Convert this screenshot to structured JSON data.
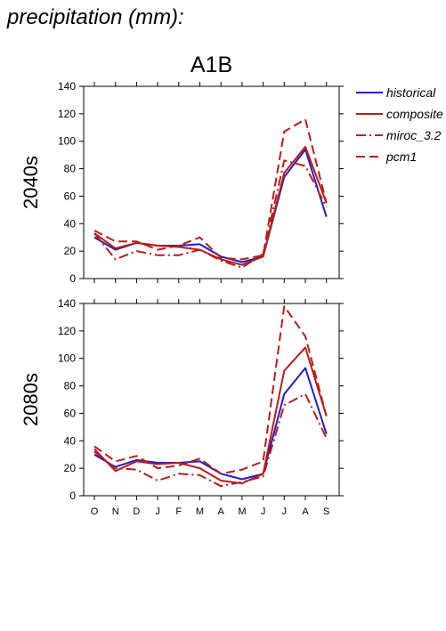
{
  "page_title": "precipitation (mm):",
  "scenario": "A1B",
  "colors": {
    "historical": "#1f1fbf",
    "models": "#b81c1c",
    "axis": "#000000"
  },
  "chart_data": [
    {
      "type": "line",
      "title": "A1B",
      "ylabel": "2040s",
      "xlabel": "",
      "categories": [
        "O",
        "N",
        "D",
        "J",
        "F",
        "M",
        "A",
        "M",
        "J",
        "J",
        "A",
        "S"
      ],
      "ylim": [
        0,
        140
      ],
      "yticks": [
        0,
        20,
        40,
        60,
        80,
        100,
        120,
        140
      ],
      "grid": false,
      "legend": "right",
      "series": [
        {
          "name": "historical",
          "style": "solid",
          "color": "#1f1fbf",
          "values": [
            30,
            21,
            26,
            24,
            24,
            25,
            16,
            12,
            16,
            74,
            94,
            45
          ]
        },
        {
          "name": "composite",
          "style": "solid",
          "color": "#b81c1c",
          "values": [
            33,
            22,
            26,
            24,
            23,
            21,
            14,
            10,
            16,
            77,
            96,
            55
          ]
        },
        {
          "name": "miroc_3.2",
          "style": "dashdot",
          "color": "#b81c1c",
          "values": [
            33,
            14,
            20,
            17,
            17,
            21,
            13,
            8,
            18,
            86,
            82,
            52
          ]
        },
        {
          "name": "pcm1",
          "style": "dashed",
          "color": "#b81c1c",
          "values": [
            35,
            27,
            27,
            21,
            24,
            30,
            15,
            14,
            17,
            107,
            116,
            55
          ]
        }
      ]
    },
    {
      "type": "line",
      "title": "",
      "ylabel": "2080s",
      "xlabel": "",
      "categories": [
        "O",
        "N",
        "D",
        "J",
        "F",
        "M",
        "A",
        "M",
        "J",
        "J",
        "A",
        "S"
      ],
      "ylim": [
        0,
        140
      ],
      "yticks": [
        0,
        20,
        40,
        60,
        80,
        100,
        120,
        140
      ],
      "grid": false,
      "legend": "none",
      "series": [
        {
          "name": "historical",
          "style": "solid",
          "color": "#1f1fbf",
          "values": [
            30,
            21,
            26,
            24,
            24,
            25,
            16,
            12,
            16,
            74,
            93,
            45
          ]
        },
        {
          "name": "composite",
          "style": "solid",
          "color": "#b81c1c",
          "values": [
            34,
            18,
            25,
            23,
            24,
            20,
            11,
            9,
            16,
            91,
            108,
            58
          ]
        },
        {
          "name": "miroc_3.2",
          "style": "dashdot",
          "color": "#b81c1c",
          "values": [
            32,
            20,
            19,
            11,
            16,
            15,
            7,
            10,
            14,
            66,
            74,
            42
          ]
        },
        {
          "name": "pcm1",
          "style": "dashed",
          "color": "#b81c1c",
          "values": [
            36,
            25,
            29,
            20,
            22,
            27,
            16,
            19,
            25,
            138,
            116,
            58
          ]
        }
      ]
    }
  ]
}
